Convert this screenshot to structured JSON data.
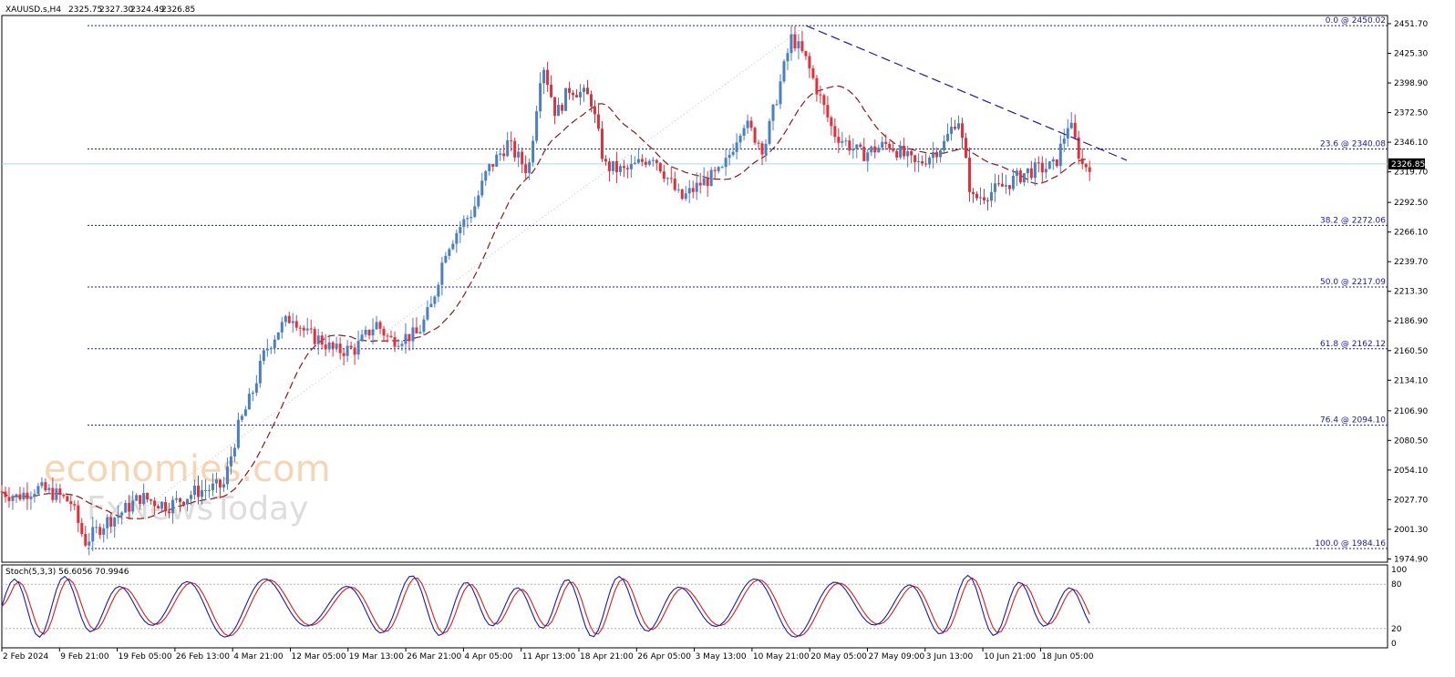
{
  "chart_data": [
    {
      "type": "candlestick",
      "title": "XAUUSD.s,H4",
      "ohlc_header": {
        "open": "2325.75",
        "high": "2327.30",
        "low": "2324.49",
        "close": "2326.85"
      },
      "ylim": [
        1972,
        2459
      ],
      "y_ticks": [
        "2451.70",
        "2425.30",
        "2398.90",
        "2372.50",
        "2346.10",
        "2319.70",
        "2292.50",
        "2266.10",
        "2239.70",
        "2213.30",
        "2186.90",
        "2160.50",
        "2134.10",
        "2106.90",
        "2080.50",
        "2054.10",
        "2027.70",
        "2001.30",
        "1974.90"
      ],
      "x_tick_labels": [
        "2 Feb 2024",
        "9 Feb 21:00",
        "19 Feb 05:00",
        "26 Feb 13:00",
        "4 Mar 21:00",
        "12 Mar 05:00",
        "19 Mar 13:00",
        "26 Mar 21:00",
        "4 Apr 05:00",
        "11 Apr 13:00",
        "18 Apr 21:00",
        "26 Apr 05:00",
        "3 May 13:00",
        "10 May 21:00",
        "20 May 05:00",
        "27 May 09:00",
        "3 Jun 13:00",
        "10 Jun 21:00",
        "18 Jun 05:00"
      ],
      "current_price": "2326.85",
      "price_path": [
        [
          0,
          2035
        ],
        [
          0.01,
          2030
        ],
        [
          0.025,
          2038
        ],
        [
          0.04,
          2032
        ],
        [
          0.05,
          2025
        ],
        [
          0.06,
          1990
        ],
        [
          0.075,
          2008
        ],
        [
          0.085,
          2015
        ],
        [
          0.1,
          2030
        ],
        [
          0.12,
          2022
        ],
        [
          0.14,
          2035
        ],
        [
          0.16,
          2040
        ],
        [
          0.17,
          2090
        ],
        [
          0.18,
          2120
        ],
        [
          0.19,
          2160
        ],
        [
          0.2,
          2180
        ],
        [
          0.21,
          2192
        ],
        [
          0.22,
          2175
        ],
        [
          0.23,
          2170
        ],
        [
          0.24,
          2160
        ],
        [
          0.255,
          2162
        ],
        [
          0.27,
          2185
        ],
        [
          0.28,
          2170
        ],
        [
          0.3,
          2175
        ],
        [
          0.31,
          2200
        ],
        [
          0.32,
          2250
        ],
        [
          0.33,
          2270
        ],
        [
          0.34,
          2285
        ],
        [
          0.35,
          2320
        ],
        [
          0.365,
          2345
        ],
        [
          0.38,
          2320
        ],
        [
          0.39,
          2420
        ],
        [
          0.4,
          2370
        ],
        [
          0.41,
          2395
        ],
        [
          0.425,
          2385
        ],
        [
          0.435,
          2325
        ],
        [
          0.45,
          2320
        ],
        [
          0.47,
          2335
        ],
        [
          0.49,
          2295
        ],
        [
          0.505,
          2310
        ],
        [
          0.52,
          2320
        ],
        [
          0.535,
          2365
        ],
        [
          0.55,
          2340
        ],
        [
          0.56,
          2390
        ],
        [
          0.57,
          2440
        ],
        [
          0.58,
          2420
        ],
        [
          0.6,
          2355
        ],
        [
          0.62,
          2335
        ],
        [
          0.64,
          2345
        ],
        [
          0.66,
          2325
        ],
        [
          0.68,
          2345
        ],
        [
          0.69,
          2370
        ],
        [
          0.7,
          2295
        ],
        [
          0.72,
          2305
        ],
        [
          0.74,
          2320
        ],
        [
          0.76,
          2325
        ],
        [
          0.77,
          2365
        ],
        [
          0.78,
          2325
        ],
        [
          0.79,
          2328
        ]
      ],
      "fib_levels": [
        {
          "label": "0.0 @ 2450.02",
          "value": 2450.02
        },
        {
          "label": "23.6 @ 2340.08",
          "value": 2340.08
        },
        {
          "label": "38.2 @ 2272.06",
          "value": 2272.06
        },
        {
          "label": "50.0 @ 2217.09",
          "value": 2217.09
        },
        {
          "label": "61.8 @ 2162.12",
          "value": 2162.12
        },
        {
          "label": "76.4 @ 2094.10",
          "value": 2094.1
        },
        {
          "label": "100.0 @ 1984.16",
          "value": 1984.16
        }
      ],
      "colors": {
        "up": "#4a7fc1",
        "down": "#e0303a",
        "ma": "#8b1a1a",
        "fib": "#1a1aa0",
        "trend": "#1a1aa0",
        "current_line": "#a9d9ee"
      }
    },
    {
      "type": "line",
      "title": "Stoch(5,3,3) 56.6056 70.9946",
      "ylim": [
        0,
        100
      ],
      "y_ticks": [
        "100",
        "80",
        "20",
        "0"
      ],
      "levels": [
        80,
        20
      ],
      "series": [
        {
          "color": "#1c1ca8"
        },
        {
          "color": "#d81e1e"
        }
      ]
    }
  ],
  "watermark": {
    "line1": "economies.com",
    "line2": "FxNewsToday"
  }
}
